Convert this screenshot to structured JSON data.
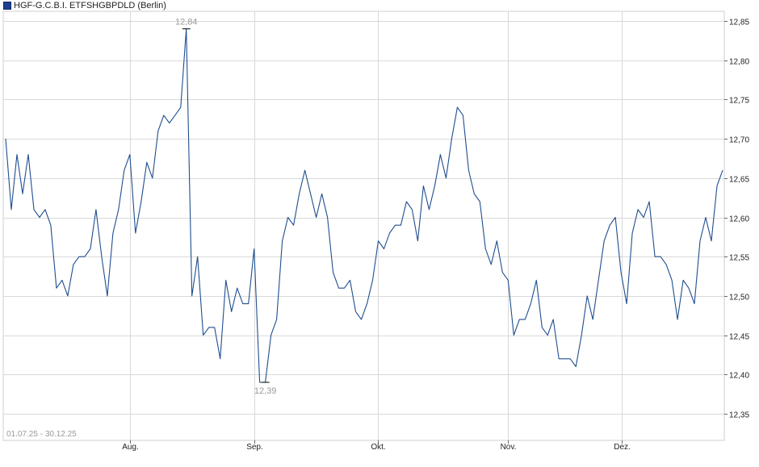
{
  "legend": {
    "label": "HGF-G.C.B.I. ETFSHGBPDLD (Berlin)",
    "color": "#1f3f8f"
  },
  "date_range": "01.07.25 - 30.12.25",
  "colors": {
    "line": "#1f4e8f",
    "grid": "#d9d9d9",
    "annotation": "#9a9a9a"
  },
  "chart_data": {
    "type": "line",
    "title": "",
    "xlabel": "",
    "ylabel": "",
    "x_tick_labels": [
      "Aug.",
      "Sep.",
      "Okt.",
      "Nov.",
      "Dez."
    ],
    "y_tick_labels": [
      "12,35",
      "12,40",
      "12,45",
      "12,50",
      "12,55",
      "12,60",
      "12,65",
      "12,70",
      "12,75",
      "12,80",
      "12,85"
    ],
    "ylim": [
      12.33,
      12.86
    ],
    "grid": true,
    "annotations": [
      {
        "text": "12,84",
        "label": "max",
        "index": 32,
        "value": 12.84
      },
      {
        "text": "12,39",
        "label": "min",
        "index": 46,
        "value": 12.39
      }
    ],
    "series": [
      {
        "values": [
          12.7,
          12.61,
          12.68,
          12.63,
          12.68,
          12.61,
          12.6,
          12.61,
          12.59,
          12.51,
          12.52,
          12.5,
          12.54,
          12.55,
          12.55,
          12.56,
          12.61,
          12.55,
          12.5,
          12.58,
          12.61,
          12.66,
          12.68,
          12.58,
          12.62,
          12.67,
          12.65,
          12.71,
          12.73,
          12.72,
          12.73,
          12.74,
          12.84,
          12.5,
          12.55,
          12.45,
          12.46,
          12.46,
          12.42,
          12.52,
          12.48,
          12.51,
          12.49,
          12.49,
          12.56,
          12.39,
          12.39,
          12.45,
          12.47,
          12.57,
          12.6,
          12.59,
          12.63,
          12.66,
          12.63,
          12.6,
          12.63,
          12.6,
          12.53,
          12.51,
          12.51,
          12.52,
          12.48,
          12.47,
          12.49,
          12.52,
          12.57,
          12.56,
          12.58,
          12.59,
          12.59,
          12.62,
          12.61,
          12.57,
          12.64,
          12.61,
          12.64,
          12.68,
          12.65,
          12.7,
          12.74,
          12.73,
          12.66,
          12.63,
          12.62,
          12.56,
          12.54,
          12.57,
          12.53,
          12.52,
          12.45,
          12.47,
          12.47,
          12.49,
          12.52,
          12.46,
          12.45,
          12.47,
          12.42,
          12.42,
          12.42,
          12.41,
          12.45,
          12.5,
          12.47,
          12.52,
          12.57,
          12.59,
          12.6,
          12.53,
          12.49,
          12.58,
          12.61,
          12.6,
          12.62,
          12.55,
          12.55,
          12.54,
          12.52,
          12.47,
          12.52,
          12.51,
          12.49,
          12.57,
          12.6,
          12.57,
          12.64,
          12.66
        ]
      }
    ]
  }
}
